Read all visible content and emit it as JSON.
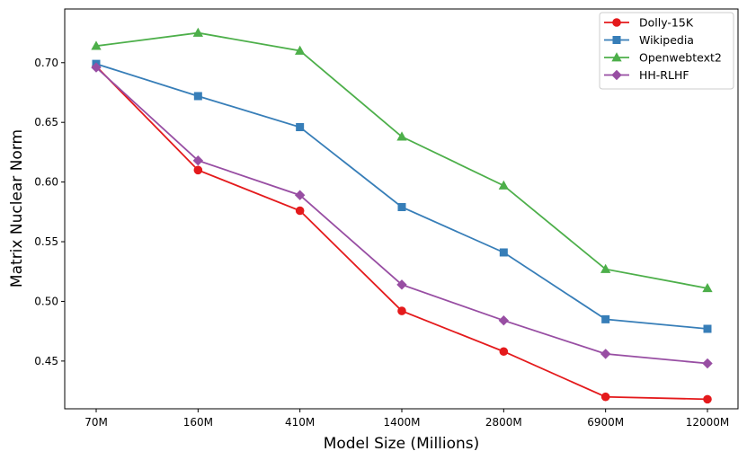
{
  "chart_data": {
    "type": "line",
    "title": "",
    "xlabel": "Model Size (Millions)",
    "ylabel": "Matrix Nuclear Norm",
    "categories": [
      "70M",
      "160M",
      "410M",
      "1400M",
      "2800M",
      "6900M",
      "12000M"
    ],
    "ylim": [
      0.41,
      0.745
    ],
    "yticks": [
      0.45,
      0.5,
      0.55,
      0.6,
      0.65,
      0.7
    ],
    "ytick_labels": [
      "0.45",
      "0.50",
      "0.55",
      "0.60",
      "0.65",
      "0.70"
    ],
    "grid": false,
    "legend_position": "top-right",
    "series": [
      {
        "name": "Dolly-15K",
        "color": "#e41a1c",
        "marker": "circle",
        "values": [
          0.697,
          0.61,
          0.576,
          0.492,
          0.458,
          0.42,
          0.418
        ]
      },
      {
        "name": "Wikipedia",
        "color": "#377eb8",
        "marker": "square",
        "values": [
          0.699,
          0.672,
          0.646,
          0.579,
          0.541,
          0.485,
          0.477
        ]
      },
      {
        "name": "Openwebtext2",
        "color": "#4daf4a",
        "marker": "triangle",
        "values": [
          0.714,
          0.725,
          0.71,
          0.638,
          0.597,
          0.527,
          0.511
        ]
      },
      {
        "name": "HH-RLHF",
        "color": "#984ea3",
        "marker": "diamond",
        "values": [
          0.696,
          0.618,
          0.589,
          0.514,
          0.484,
          0.456,
          0.448
        ]
      }
    ]
  }
}
